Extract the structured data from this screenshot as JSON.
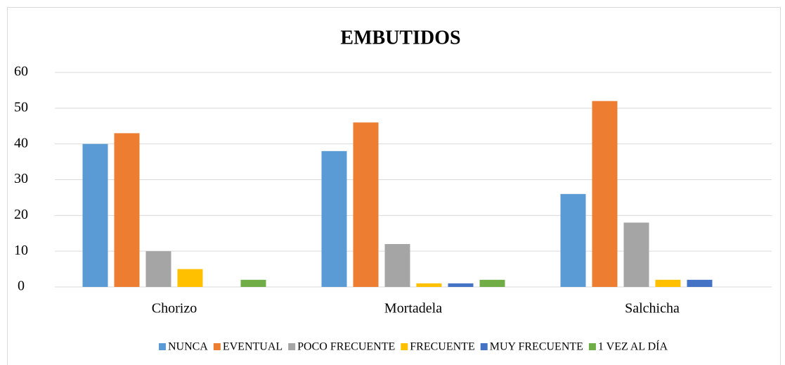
{
  "chart_data": {
    "type": "bar",
    "title": "EMBUTIDOS",
    "categories": [
      "Chorizo",
      "Mortadela",
      "Salchicha"
    ],
    "series": [
      {
        "name": "NUNCA",
        "color": "#5b9bd5",
        "values": [
          40,
          38,
          26
        ]
      },
      {
        "name": "EVENTUAL",
        "color": "#ed7d31",
        "values": [
          43,
          46,
          52
        ]
      },
      {
        "name": "POCO FRECUENTE",
        "color": "#a5a5a5",
        "values": [
          10,
          12,
          18
        ]
      },
      {
        "name": "FRECUENTE",
        "color": "#ffc000",
        "values": [
          5,
          1,
          2
        ]
      },
      {
        "name": "MUY FRECUENTE",
        "color": "#4472c4",
        "values": [
          0,
          1,
          2
        ]
      },
      {
        "name": "1 VEZ AL DÍA",
        "color": "#70ad47",
        "values": [
          2,
          2,
          0
        ]
      }
    ],
    "ylim": [
      0,
      60
    ],
    "yticks": [
      0,
      10,
      20,
      30,
      40,
      50,
      60
    ],
    "grid": true,
    "legend": "bottom"
  }
}
